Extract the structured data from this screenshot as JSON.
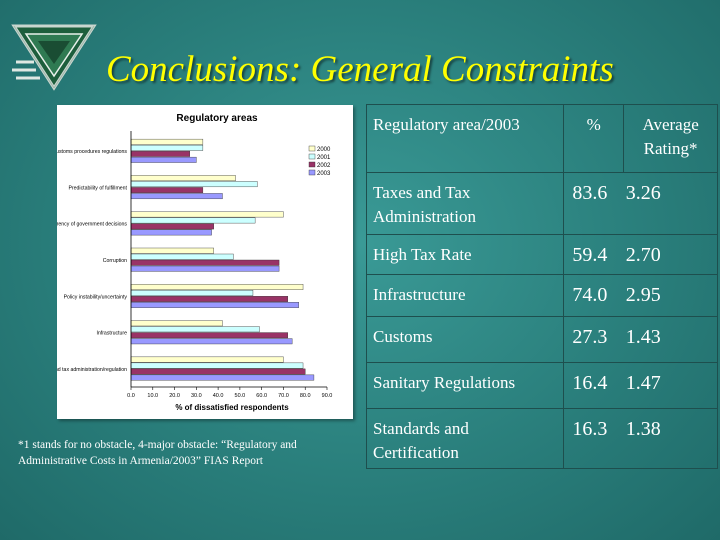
{
  "slide": {
    "title": "Conclusions: General Constraints",
    "footnote": "*1 stands for no obstacle, 4-major obstacle: “Regulatory and Administrative Costs in Armenia/2003” FIAS Report"
  },
  "colors": {
    "background": "#2a7f7c",
    "title": "#ffff00",
    "text": "#ffffff",
    "series_2000": "#ffffcc",
    "series_2001": "#ccffff",
    "series_2002": "#993366",
    "series_2003": "#9999ff"
  },
  "table": {
    "headers": {
      "area": "Regulatory area/2003",
      "percent": "%",
      "rating": "Average Rating*"
    },
    "rows": [
      {
        "area": "Taxes and Tax Administration",
        "percent": "83.6",
        "rating": "3.26"
      },
      {
        "area": "High Tax Rate",
        "percent": "59.4",
        "rating": "2.70"
      },
      {
        "area": "Infrastructure",
        "percent": "74.0",
        "rating": "2.95"
      },
      {
        "area": "Customs",
        "percent": "27.3",
        "rating": "1.43"
      },
      {
        "area": "Sanitary Regulations",
        "percent": "16.4",
        "rating": "1.47"
      },
      {
        "area": "Standards and Certification",
        "percent": "16.3",
        "rating": "1.38"
      }
    ]
  },
  "chart_data": {
    "type": "bar",
    "orientation": "horizontal",
    "title": "Regulatory areas",
    "xlabel": "% of dissatisfied respondents",
    "ylabel": "",
    "xlim": [
      0,
      90
    ],
    "x_ticks": [
      "0.0",
      "10.0",
      "20.0",
      "30.0",
      "40.0",
      "50.0",
      "60.0",
      "70.0",
      "80.0",
      "90.0"
    ],
    "categories": [
      "Customs procedures regulations",
      "Predictability of fulfillment",
      "Complexity, non-transparency of government decisions",
      "Corruption",
      "Policy instability/uncertainty",
      "Infrastructure",
      "Taxes and tax administration/regulation"
    ],
    "legend_position": "right",
    "series": [
      {
        "name": "2000",
        "values": [
          33,
          48,
          70,
          38,
          79,
          42,
          70
        ]
      },
      {
        "name": "2001",
        "values": [
          33,
          58,
          57,
          47,
          56,
          59,
          79
        ]
      },
      {
        "name": "2002",
        "values": [
          27,
          33,
          38,
          68,
          72,
          72,
          80
        ]
      },
      {
        "name": "2003",
        "values": [
          30,
          42,
          37,
          68,
          77,
          74,
          84
        ]
      }
    ]
  }
}
